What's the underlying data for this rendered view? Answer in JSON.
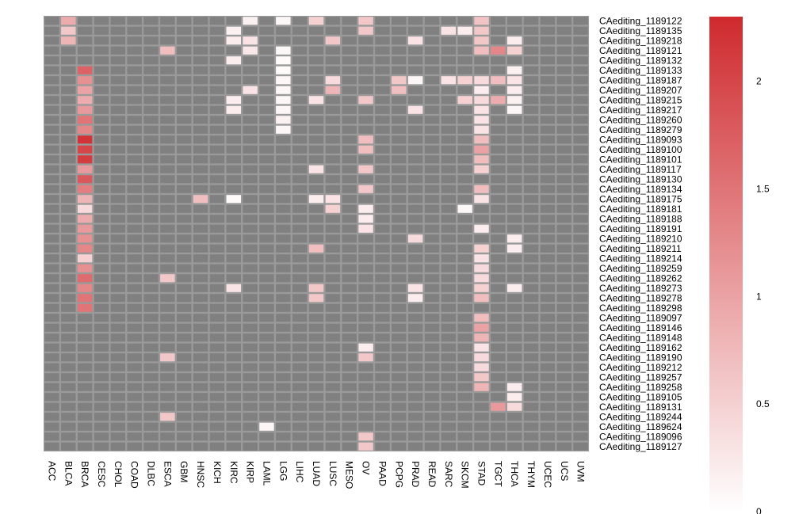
{
  "chart_data": {
    "type": "heatmap",
    "title": "",
    "columns": [
      "ACC",
      "BLCA",
      "BRCA",
      "CESC",
      "CHOL",
      "COAD",
      "DLBC",
      "ESCA",
      "GBM",
      "HNSC",
      "KICH",
      "KIRC",
      "KIRP",
      "LAML",
      "LGG",
      "LIHC",
      "LUAD",
      "LUSC",
      "MESO",
      "OV",
      "PAAD",
      "PCPG",
      "PRAD",
      "READ",
      "SARC",
      "SKCM",
      "STAD",
      "TGCT",
      "THCA",
      "THYM",
      "UCEC",
      "UCS",
      "UVM"
    ],
    "rows": [
      "CAediting_1189122",
      "CAediting_1189135",
      "CAediting_1189218",
      "CAediting_1189121",
      "CAediting_1189132",
      "CAediting_1189133",
      "CAediting_1189187",
      "CAediting_1189207",
      "CAediting_1189215",
      "CAediting_1189217",
      "CAediting_1189260",
      "CAediting_1189279",
      "CAediting_1189093",
      "CAediting_1189100",
      "CAediting_1189101",
      "CAediting_1189117",
      "CAediting_1189130",
      "CAediting_1189134",
      "CAediting_1189175",
      "CAediting_1189181",
      "CAediting_1189188",
      "CAediting_1189191",
      "CAediting_1189210",
      "CAediting_1189211",
      "CAediting_1189214",
      "CAediting_1189259",
      "CAediting_1189262",
      "CAediting_1189273",
      "CAediting_1189278",
      "CAediting_1189298",
      "CAediting_1189097",
      "CAediting_1189146",
      "CAediting_1189148",
      "CAediting_1189162",
      "CAediting_1189190",
      "CAediting_1189212",
      "CAediting_1189257",
      "CAediting_1189258",
      "CAediting_1189105",
      "CAediting_1189131",
      "CAediting_1189244",
      "CAediting_1189624",
      "CAediting_1189096",
      "CAediting_1189127"
    ],
    "na_color": "#808080",
    "grid_color": "#9a9a9a",
    "color_low": "#ffffff",
    "color_high": "#cf2a2e",
    "range": [
      0,
      2.3
    ],
    "colorbar_ticks": [
      {
        "value": 0,
        "label": "0"
      },
      {
        "value": 0.5,
        "label": "0.5"
      },
      {
        "value": 1,
        "label": "1"
      },
      {
        "value": 1.5,
        "label": "1.5"
      },
      {
        "value": 2,
        "label": "2"
      }
    ],
    "cells": [
      [
        0,
        1,
        0.9
      ],
      [
        0,
        12,
        0.15
      ],
      [
        0,
        14,
        0.1
      ],
      [
        0,
        16,
        0.5
      ],
      [
        0,
        19,
        0.6
      ],
      [
        0,
        26,
        0.65
      ],
      [
        1,
        1,
        0.6
      ],
      [
        1,
        11,
        0.15
      ],
      [
        1,
        19,
        0.6
      ],
      [
        1,
        24,
        0.3
      ],
      [
        1,
        25,
        0.2
      ],
      [
        1,
        26,
        0.6
      ],
      [
        2,
        1,
        0.8
      ],
      [
        2,
        11,
        0.2
      ],
      [
        2,
        12,
        0.3
      ],
      [
        2,
        17,
        0.6
      ],
      [
        2,
        22,
        0.3
      ],
      [
        2,
        26,
        0.6
      ],
      [
        2,
        28,
        0.2
      ],
      [
        3,
        7,
        0.7
      ],
      [
        3,
        12,
        0.25
      ],
      [
        3,
        14,
        0.1
      ],
      [
        3,
        26,
        0.7
      ],
      [
        3,
        27,
        1.3
      ],
      [
        3,
        28,
        0.5
      ],
      [
        4,
        11,
        0.2
      ],
      [
        4,
        14,
        0.05
      ],
      [
        5,
        2,
        1.7
      ],
      [
        5,
        14,
        0.05
      ],
      [
        5,
        28,
        0.15
      ],
      [
        6,
        2,
        1.2
      ],
      [
        6,
        14,
        0.1
      ],
      [
        6,
        17,
        0.4
      ],
      [
        6,
        21,
        0.6
      ],
      [
        6,
        22,
        0.1
      ],
      [
        6,
        24,
        0.3
      ],
      [
        6,
        25,
        0.5
      ],
      [
        6,
        26,
        0.4
      ],
      [
        6,
        27,
        0.7
      ],
      [
        6,
        28,
        0.3
      ],
      [
        7,
        2,
        1.0
      ],
      [
        7,
        12,
        0.3
      ],
      [
        7,
        14,
        0.1
      ],
      [
        7,
        17,
        0.8
      ],
      [
        7,
        21,
        0.7
      ],
      [
        7,
        26,
        0.2
      ],
      [
        7,
        28,
        0.2
      ],
      [
        8,
        2,
        0.9
      ],
      [
        8,
        11,
        0.2
      ],
      [
        8,
        14,
        0.1
      ],
      [
        8,
        16,
        0.3
      ],
      [
        8,
        19,
        0.6
      ],
      [
        8,
        25,
        0.5
      ],
      [
        8,
        26,
        0.4
      ],
      [
        8,
        27,
        0.9
      ],
      [
        8,
        28,
        0.15
      ],
      [
        9,
        2,
        1.1
      ],
      [
        9,
        11,
        0.2
      ],
      [
        9,
        14,
        0.1
      ],
      [
        9,
        22,
        0.3
      ],
      [
        9,
        26,
        0.3
      ],
      [
        9,
        28,
        0.1
      ],
      [
        10,
        2,
        1.5
      ],
      [
        10,
        14,
        0.15
      ],
      [
        10,
        26,
        0.3
      ],
      [
        11,
        2,
        1.3
      ],
      [
        11,
        14,
        0.1
      ],
      [
        11,
        26,
        0.3
      ],
      [
        12,
        2,
        2.2
      ],
      [
        12,
        19,
        0.7
      ],
      [
        12,
        26,
        0.7
      ],
      [
        13,
        2,
        2.0
      ],
      [
        13,
        19,
        0.7
      ],
      [
        13,
        26,
        1.0
      ],
      [
        14,
        2,
        2.1
      ],
      [
        14,
        26,
        0.7
      ],
      [
        15,
        2,
        1.1
      ],
      [
        15,
        16,
        0.3
      ],
      [
        15,
        19,
        0.6
      ],
      [
        15,
        26,
        0.5
      ],
      [
        16,
        2,
        1.8
      ],
      [
        17,
        2,
        1.4
      ],
      [
        17,
        19,
        0.6
      ],
      [
        17,
        26,
        0.7
      ],
      [
        18,
        2,
        0.8
      ],
      [
        18,
        9,
        0.7
      ],
      [
        18,
        11,
        0.05
      ],
      [
        18,
        16,
        0.2
      ],
      [
        18,
        17,
        0.3
      ],
      [
        18,
        26,
        0.3
      ],
      [
        19,
        2,
        0.4
      ],
      [
        19,
        17,
        0.5
      ],
      [
        19,
        19,
        0.2
      ],
      [
        19,
        25,
        0.1
      ],
      [
        20,
        2,
        0.9
      ],
      [
        20,
        19,
        0.2
      ],
      [
        21,
        2,
        1.1
      ],
      [
        21,
        19,
        0.3
      ],
      [
        21,
        26,
        0.2
      ],
      [
        22,
        2,
        1.2
      ],
      [
        22,
        22,
        0.4
      ],
      [
        22,
        28,
        0.2
      ],
      [
        23,
        2,
        1.3
      ],
      [
        23,
        16,
        0.7
      ],
      [
        23,
        26,
        0.5
      ],
      [
        23,
        28,
        0.2
      ],
      [
        24,
        2,
        0.5
      ],
      [
        24,
        26,
        0.3
      ],
      [
        25,
        2,
        1.2
      ],
      [
        25,
        26,
        0.4
      ],
      [
        26,
        2,
        1.6
      ],
      [
        26,
        7,
        0.6
      ],
      [
        26,
        26,
        0.4
      ],
      [
        27,
        2,
        1.3
      ],
      [
        27,
        11,
        0.3
      ],
      [
        27,
        16,
        0.6
      ],
      [
        27,
        22,
        0.3
      ],
      [
        27,
        26,
        0.5
      ],
      [
        27,
        28,
        0.2
      ],
      [
        28,
        2,
        1.5
      ],
      [
        28,
        16,
        0.6
      ],
      [
        28,
        22,
        0.2
      ],
      [
        28,
        26,
        0.7
      ],
      [
        29,
        2,
        1.5
      ],
      [
        30,
        26,
        0.7
      ],
      [
        31,
        26,
        1.0
      ],
      [
        32,
        26,
        0.8
      ],
      [
        33,
        19,
        0.2
      ],
      [
        33,
        26,
        0.3
      ],
      [
        34,
        7,
        0.6
      ],
      [
        34,
        19,
        0.6
      ],
      [
        34,
        26,
        0.4
      ],
      [
        35,
        26,
        0.4
      ],
      [
        36,
        26,
        0.6
      ],
      [
        37,
        26,
        0.8
      ],
      [
        37,
        28,
        0.2
      ],
      [
        38,
        28,
        0.2
      ],
      [
        39,
        27,
        1.1
      ],
      [
        39,
        28,
        0.4
      ],
      [
        40,
        7,
        0.6
      ],
      [
        41,
        13,
        0.1
      ],
      [
        42,
        19,
        0.6
      ],
      [
        43,
        19,
        0.6
      ]
    ]
  }
}
